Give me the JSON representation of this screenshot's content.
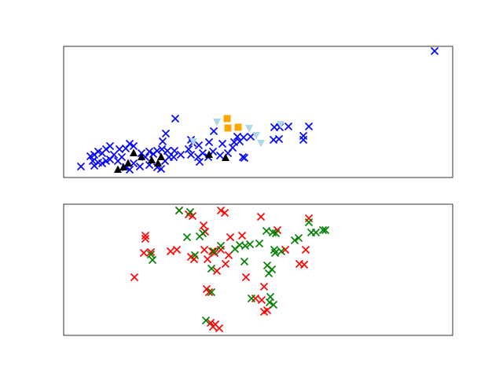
{
  "chart_data": [
    {
      "type": "scatter",
      "xlim": [
        81,
        576
      ],
      "ylim": [
        0,
        167
      ],
      "series": [
        {
          "color": "#0000ff",
          "marker": "x",
          "x": [
            553,
            393,
            367,
            349,
            356,
            355,
            386,
            386,
            223,
            272,
            211,
            207,
            243,
            245,
            266,
            253,
            283,
            298,
            302,
            310,
            319,
            305,
            296,
            309,
            311,
            271,
            258,
            252,
            254,
            265,
            280,
            290,
            243,
            240,
            222,
            221,
            213,
            206,
            200,
            195,
            190,
            185,
            180,
            170,
            165,
            160,
            152,
            140,
            135,
            130,
            125,
            120,
            115,
            118,
            125,
            130,
            103,
            120,
            140,
            150,
            160,
            165,
            170,
            178,
            190,
            200,
            205,
            210,
            215,
            145,
            155,
            135,
            230,
            348
          ],
          "y": [
            161,
            65,
            65,
            64,
            64,
            49,
            48,
            53,
            75,
            59,
            56,
            46,
            48,
            44,
            45,
            41,
            43,
            45,
            52,
            51,
            52,
            46,
            38,
            26,
            25,
            33,
            31,
            26,
            20,
            26,
            28,
            31,
            29,
            36,
            34,
            26,
            34,
            36,
            34,
            30,
            33,
            26,
            31,
            40,
            43,
            37,
            36,
            40,
            36,
            31,
            33,
            29,
            27,
            21,
            19,
            18,
            14,
            15,
            23,
            21,
            13,
            10,
            18,
            14,
            16,
            13,
            11,
            21,
            26,
            29,
            26,
            21,
            29,
            48
          ]
        },
        {
          "color": "#000000",
          "marker": "^",
          "x": [
            150,
            163,
            170,
            180,
            193,
            201,
            205,
            266,
            287,
            157
          ],
          "y": [
            10,
            18,
            31,
            26,
            22,
            18,
            26,
            29,
            25,
            13
          ]
        },
        {
          "color": "#ffa500",
          "marker": "s",
          "x": [
            289,
            290,
            303
          ],
          "y": [
            75,
            63,
            64
          ]
        },
        {
          "color": "#add8e6",
          "marker": "v",
          "x": [
            276,
            317,
            332,
            326,
            357,
            246
          ],
          "y": [
            71,
            63,
            44,
            54,
            68,
            46
          ]
        }
      ]
    },
    {
      "type": "scatter",
      "xlim": [
        81,
        576
      ],
      "ylim": [
        0,
        167
      ],
      "series": [
        {
          "color": "#ff0000",
          "marker": "x",
          "x": [
            228,
            240,
            245,
            281,
            286,
            332,
            393,
            259,
            261,
            185,
            185,
            293,
            308,
            353,
            183,
            192,
            217,
            225,
            243,
            247,
            260,
            270,
            273,
            281,
            291,
            264,
            276,
            287,
            363,
            389,
            381,
            387,
            171,
            313,
            336,
            263,
            266,
            325,
            333,
            340,
            336,
            268,
            274,
            279,
            271
          ],
          "y": [
            159,
            154,
            152,
            159,
            156,
            151,
            149,
            140,
            132,
            127,
            123,
            125,
            127,
            134,
            105,
            106,
            107,
            109,
            100,
            97,
            109,
            107,
            105,
            109,
            102,
            97,
            82,
            91,
            109,
            109,
            91,
            90,
            74,
            74,
            62,
            59,
            55,
            47,
            45,
            32,
            30,
            16,
            14,
            9,
            11
          ]
        },
        {
          "color": "#008000",
          "marker": "x",
          "x": [
            228,
            242,
            254,
            258,
            238,
            192,
            194,
            248,
            269,
            272,
            281,
            299,
            305,
            312,
            318,
            330,
            339,
            347,
            351,
            349,
            358,
            350,
            375,
            380,
            396,
            402,
            411,
            414,
            393,
            269,
            311,
            340,
            342,
            346,
            320,
            343,
            348,
            344,
            262
          ],
          "y": [
            159,
            157,
            126,
            130,
            125,
            103,
            96,
            102,
            85,
            107,
            114,
            110,
            115,
            114,
            116,
            117,
            133,
            131,
            130,
            109,
            107,
            105,
            121,
            124,
            131,
            131,
            134,
            134,
            144,
            55,
            94,
            89,
            79,
            84,
            47,
            42,
            39,
            49,
            19
          ]
        }
      ]
    }
  ]
}
